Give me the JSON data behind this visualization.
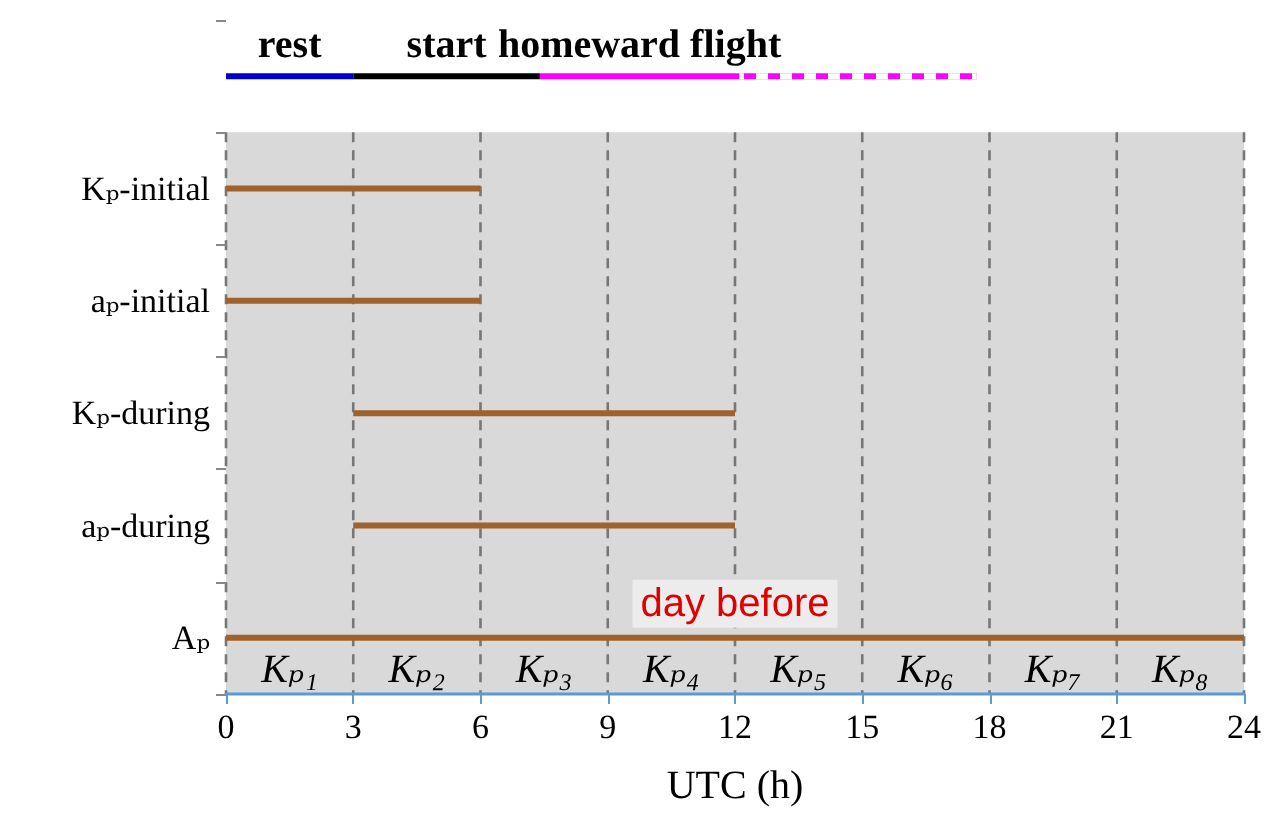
{
  "chart_data": {
    "type": "bar",
    "orientation": "horizontal",
    "categories": [
      null,
      "Kₚ-initial",
      "aₚ-initial",
      "Kₚ-during",
      "aₚ-during",
      "Aₚ"
    ],
    "series": [
      {
        "color": "#a0622d",
        "values": [
          null,
          6,
          6,
          9,
          9,
          24
        ],
        "base": [
          null,
          0,
          0,
          3,
          3,
          0
        ]
      },
      {
        "name": "rest",
        "color": "#0000cc",
        "values": [
          3,
          null,
          null,
          null,
          null,
          null
        ],
        "base": [
          0,
          null,
          null,
          null,
          null,
          null
        ]
      },
      {
        "name": "start",
        "color": "#000000",
        "values": [
          4.4,
          null,
          null,
          null,
          null,
          null
        ],
        "base": [
          3,
          null,
          null,
          null,
          null,
          null
        ]
      },
      {
        "name": "homeward flight",
        "color": "#ff00ff",
        "values": [
          4.7,
          null,
          null,
          null,
          null,
          null
        ],
        "base": [
          7.4,
          null,
          null,
          null,
          null,
          null
        ]
      },
      {
        "color": "#ff00ff",
        "values": [
          5.6,
          null,
          null,
          null,
          null,
          null
        ],
        "base": [
          12.1,
          null,
          null,
          null,
          null,
          null
        ],
        "line_style": "dashed"
      }
    ],
    "bands": [
      {
        "axis": "x",
        "from": 0,
        "to": 24,
        "color": "#d9d9d9"
      }
    ],
    "xlim": [
      0,
      24
    ],
    "xticks": [
      0,
      3,
      6,
      9,
      12,
      15,
      18,
      21,
      24
    ],
    "xlabel": "UTC (h)",
    "grid": "x",
    "annotations": [
      {
        "text": "day before",
        "x": 12,
        "y": "Aₚ"
      },
      "Kₚ₁",
      "Kₚ₂",
      "Kₚ₃",
      "Kₚ₄",
      "Kₚ₅",
      "Kₚ₆",
      "Kₚ₇",
      "Kₚ₈"
    ]
  }
}
